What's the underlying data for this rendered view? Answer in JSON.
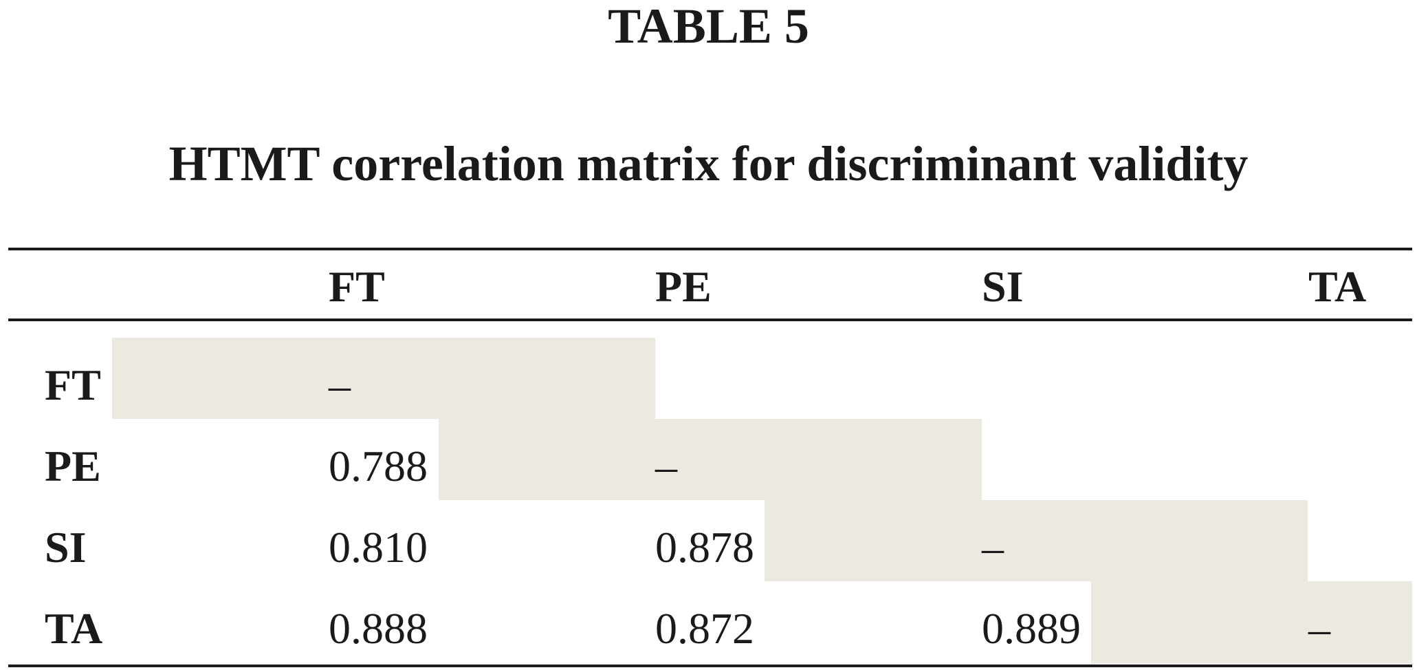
{
  "table_number": "TABLE 5",
  "caption": "HTMT correlation matrix for discriminant validity",
  "columns": [
    "FT",
    "PE",
    "SI",
    "TA"
  ],
  "rows": [
    {
      "label": "FT",
      "values": [
        "–",
        "",
        "",
        ""
      ]
    },
    {
      "label": "PE",
      "values": [
        "0.788",
        "–",
        "",
        ""
      ]
    },
    {
      "label": "SI",
      "values": [
        "0.810",
        "0.878",
        "–",
        ""
      ]
    },
    {
      "label": "TA",
      "values": [
        "0.888",
        "0.872",
        "0.889",
        "–"
      ]
    }
  ],
  "colors": {
    "diagonal_shade": "#ebe9e0",
    "rule": "#1a1a1a"
  }
}
